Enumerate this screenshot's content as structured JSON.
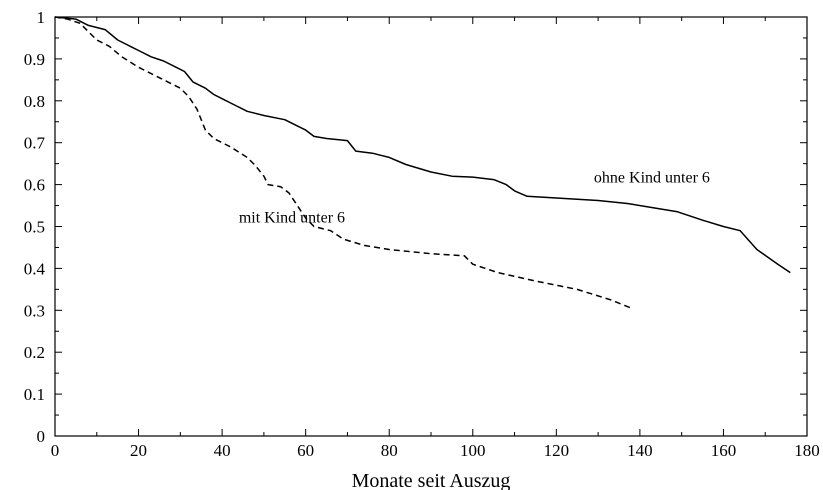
{
  "chart_data": {
    "type": "line",
    "title": "",
    "xlabel": "Monate seit Auszug",
    "ylabel": "",
    "xlim": [
      0,
      180
    ],
    "ylim": [
      0,
      1
    ],
    "x_ticks": [
      0,
      20,
      40,
      60,
      80,
      100,
      120,
      140,
      160,
      180
    ],
    "x_tick_labels": [
      "0",
      "20",
      "40",
      "60",
      "80",
      "100",
      "120",
      "140",
      "160",
      "180"
    ],
    "y_ticks": [
      0,
      0.1,
      0.2,
      0.3,
      0.4,
      0.5,
      0.6,
      0.7,
      0.8,
      0.9,
      1
    ],
    "y_tick_labels": [
      "0",
      "0.1",
      "0.2",
      "0.3",
      "0.4",
      "0.5",
      "0.6",
      "0.7",
      "0.8",
      "0.9",
      "1"
    ],
    "grid": false,
    "legend": "none",
    "series": [
      {
        "name": "ohne Kind unter 6",
        "style": "solid",
        "color": "#000000",
        "label_at": [
          129,
          0.605
        ],
        "points": [
          [
            0,
            1.0
          ],
          [
            5,
            0.995
          ],
          [
            8,
            0.98
          ],
          [
            12,
            0.97
          ],
          [
            15,
            0.945
          ],
          [
            18,
            0.93
          ],
          [
            20,
            0.92
          ],
          [
            23,
            0.905
          ],
          [
            26,
            0.895
          ],
          [
            29,
            0.88
          ],
          [
            31,
            0.87
          ],
          [
            33,
            0.845
          ],
          [
            36,
            0.83
          ],
          [
            38,
            0.815
          ],
          [
            40,
            0.805
          ],
          [
            43,
            0.79
          ],
          [
            46,
            0.775
          ],
          [
            50,
            0.765
          ],
          [
            55,
            0.755
          ],
          [
            58,
            0.74
          ],
          [
            60,
            0.73
          ],
          [
            62,
            0.715
          ],
          [
            65,
            0.71
          ],
          [
            70,
            0.705
          ],
          [
            72,
            0.68
          ],
          [
            76,
            0.675
          ],
          [
            80,
            0.665
          ],
          [
            84,
            0.648
          ],
          [
            90,
            0.63
          ],
          [
            95,
            0.62
          ],
          [
            100,
            0.618
          ],
          [
            105,
            0.612
          ],
          [
            108,
            0.6
          ],
          [
            110,
            0.585
          ],
          [
            113,
            0.572
          ],
          [
            120,
            0.568
          ],
          [
            130,
            0.562
          ],
          [
            137,
            0.555
          ],
          [
            143,
            0.545
          ],
          [
            149,
            0.535
          ],
          [
            155,
            0.515
          ],
          [
            160,
            0.5
          ],
          [
            164,
            0.49
          ],
          [
            168,
            0.445
          ],
          [
            173,
            0.41
          ],
          [
            176,
            0.39
          ]
        ]
      },
      {
        "name": "mit Kind unter 6",
        "style": "dashed",
        "color": "#000000",
        "label_at": [
          44,
          0.51
        ],
        "points": [
          [
            0,
            1.0
          ],
          [
            3,
            0.995
          ],
          [
            6,
            0.985
          ],
          [
            8,
            0.965
          ],
          [
            10,
            0.945
          ],
          [
            13,
            0.93
          ],
          [
            16,
            0.905
          ],
          [
            20,
            0.88
          ],
          [
            23,
            0.865
          ],
          [
            27,
            0.845
          ],
          [
            30,
            0.83
          ],
          [
            32,
            0.81
          ],
          [
            34,
            0.78
          ],
          [
            36,
            0.73
          ],
          [
            38,
            0.71
          ],
          [
            42,
            0.69
          ],
          [
            46,
            0.665
          ],
          [
            48,
            0.645
          ],
          [
            50,
            0.62
          ],
          [
            51,
            0.6
          ],
          [
            54,
            0.595
          ],
          [
            56,
            0.58
          ],
          [
            58,
            0.55
          ],
          [
            60,
            0.52
          ],
          [
            62,
            0.5
          ],
          [
            66,
            0.49
          ],
          [
            69,
            0.47
          ],
          [
            74,
            0.455
          ],
          [
            80,
            0.445
          ],
          [
            90,
            0.435
          ],
          [
            98,
            0.43
          ],
          [
            100,
            0.41
          ],
          [
            106,
            0.39
          ],
          [
            115,
            0.37
          ],
          [
            125,
            0.35
          ],
          [
            133,
            0.325
          ],
          [
            138,
            0.305
          ]
        ]
      }
    ]
  }
}
